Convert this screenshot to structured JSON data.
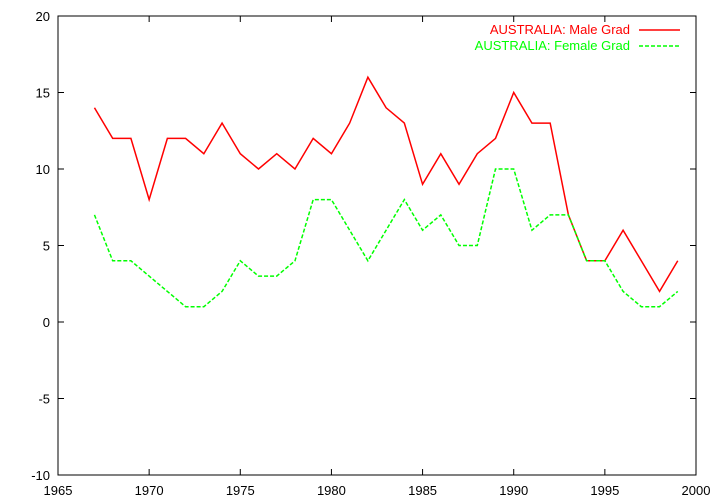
{
  "chart_data": {
    "type": "line",
    "title": "",
    "xlabel": "",
    "ylabel": "",
    "xlim": [
      1965,
      2000
    ],
    "ylim": [
      -10,
      20
    ],
    "grid": false,
    "legend_position": "top-right",
    "x_ticks": [
      "1965",
      "1970",
      "1975",
      "1980",
      "1985",
      "1990",
      "1995",
      "2000"
    ],
    "y_ticks": [
      "-10",
      "-5",
      "0",
      "5",
      "10",
      "15",
      "20"
    ],
    "x": [
      1967,
      1968,
      1969,
      1970,
      1971,
      1972,
      1973,
      1974,
      1975,
      1976,
      1977,
      1978,
      1979,
      1980,
      1981,
      1982,
      1983,
      1984,
      1985,
      1986,
      1987,
      1988,
      1989,
      1990,
      1991,
      1992,
      1993,
      1994,
      1995,
      1996,
      1997,
      1998,
      1999
    ],
    "series": [
      {
        "name": "AUSTRALIA: Male Grad",
        "color": "#ff0000",
        "dash": "solid",
        "values": [
          14,
          12,
          12,
          8,
          12,
          12,
          11,
          13,
          11,
          10,
          11,
          10,
          12,
          11,
          13,
          16,
          14,
          13,
          9,
          11,
          9,
          11,
          12,
          15,
          13,
          13,
          7,
          4,
          4,
          6,
          4,
          2,
          4
        ]
      },
      {
        "name": "AUSTRALIA: Female Grad",
        "color": "#00ff00",
        "dash": "dashed",
        "values": [
          7,
          4,
          4,
          3,
          2,
          1,
          1,
          2,
          4,
          3,
          3,
          4,
          8,
          8,
          6,
          4,
          6,
          8,
          6,
          7,
          5,
          5,
          10,
          10,
          6,
          7,
          7,
          4,
          4,
          2,
          1,
          1,
          2
        ]
      }
    ]
  }
}
